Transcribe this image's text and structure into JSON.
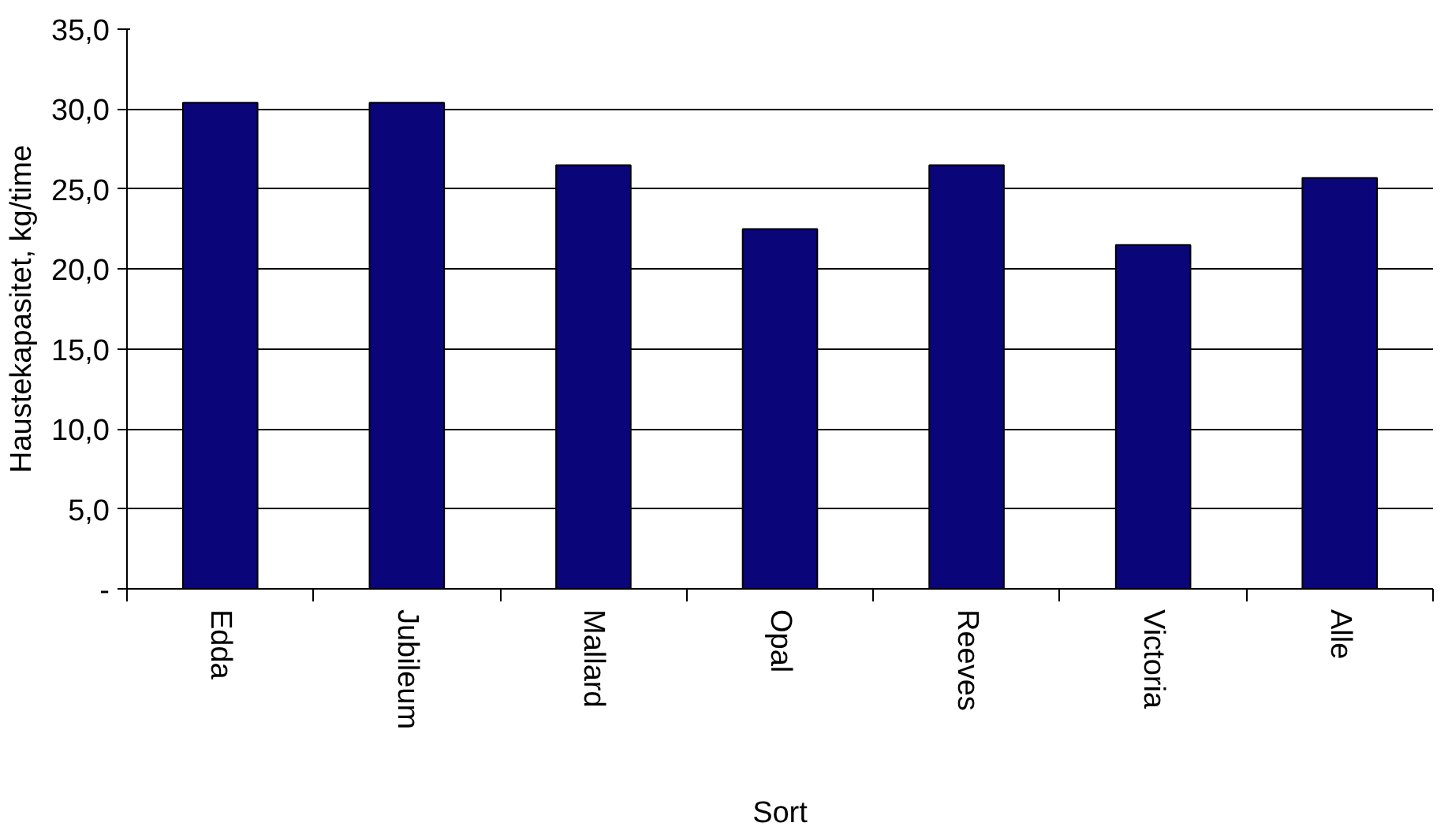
{
  "chart_data": {
    "type": "bar",
    "xlabel": "Sort",
    "ylabel": "Haustekapasitet, kg/time",
    "categories": [
      "Edda",
      "Jubileum",
      "Mallard",
      "Opal",
      "Reeves",
      "Victoria",
      "Alle"
    ],
    "values": [
      30.4,
      30.4,
      26.5,
      22.5,
      26.5,
      21.5,
      25.7
    ],
    "color": "#0a0578",
    "ylim": [
      0,
      35
    ],
    "yticks": [
      {
        "value": 0,
        "label": "-"
      },
      {
        "value": 5,
        "label": "5,0"
      },
      {
        "value": 10,
        "label": "10,0"
      },
      {
        "value": 15,
        "label": "15,0"
      },
      {
        "value": 20,
        "label": "20,0"
      },
      {
        "value": 25,
        "label": "25,0"
      },
      {
        "value": 30,
        "label": "30,0"
      },
      {
        "value": 35,
        "label": "35,0"
      }
    ],
    "grid": "y"
  }
}
